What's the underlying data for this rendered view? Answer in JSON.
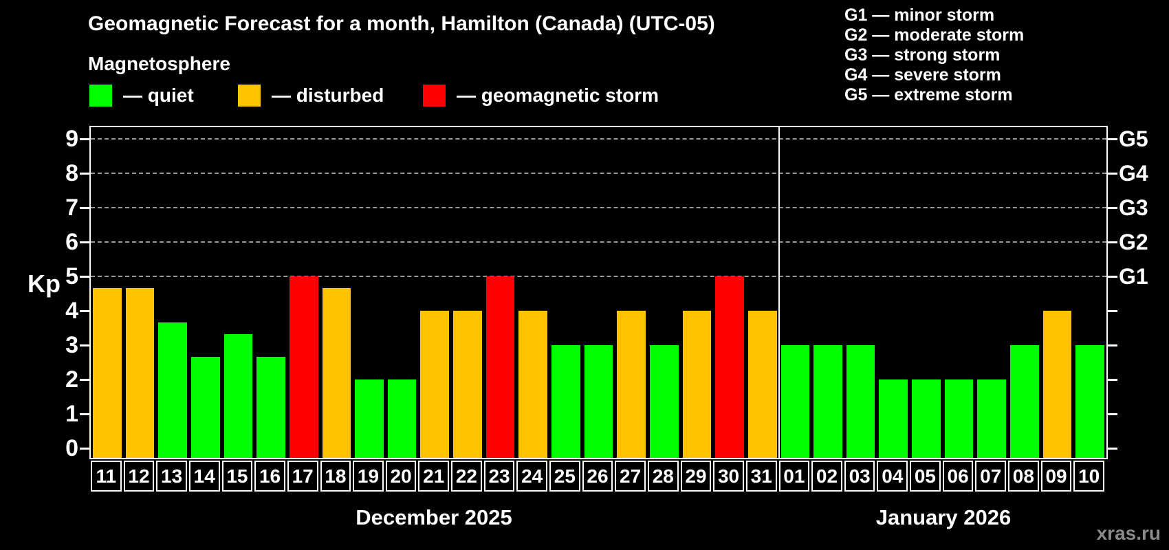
{
  "header": {
    "title": "Geomagnetic Forecast for a month, Hamilton (Canada) (UTC-05)",
    "subtitle": "Magnetosphere"
  },
  "legend": {
    "items": [
      {
        "status": "quiet",
        "label": "— quiet",
        "color": "#00FF00"
      },
      {
        "status": "disturbed",
        "label": "— disturbed",
        "color": "#FFC400"
      },
      {
        "status": "storm",
        "label": "— geomagnetic storm",
        "color": "#FF0000"
      }
    ]
  },
  "g_legend": {
    "items": [
      {
        "label": "G1 — minor storm"
      },
      {
        "label": "G2 — moderate storm"
      },
      {
        "label": "G3 — strong storm"
      },
      {
        "label": "G4 — severe storm"
      },
      {
        "label": "G5 — extreme storm"
      }
    ]
  },
  "y_axis": {
    "label": "Kp",
    "ticks": [
      0,
      1,
      2,
      3,
      4,
      5,
      6,
      7,
      8,
      9
    ]
  },
  "months": [
    {
      "label": "December 2025",
      "days_count": 21
    },
    {
      "label": "January 2026",
      "days_count": 10
    }
  ],
  "watermark": "xras.ru",
  "chart_data": {
    "type": "bar",
    "title": "Geomagnetic Forecast for a month, Hamilton (Canada) (UTC-05)",
    "ylabel": "Kp",
    "ylim": [
      0,
      9
    ],
    "grid": "dashed horizontal at Kp 5-9",
    "legend_position": "top",
    "status_colors": {
      "quiet": "#00FF00",
      "disturbed": "#FFC400",
      "storm": "#FF0000"
    },
    "gridlines_kp": [
      5,
      6,
      7,
      8,
      9
    ],
    "right_axis_labels": [
      {
        "kp": 5,
        "label": "G1"
      },
      {
        "kp": 6,
        "label": "G2"
      },
      {
        "kp": 7,
        "label": "G3"
      },
      {
        "kp": 8,
        "label": "G4"
      },
      {
        "kp": 9,
        "label": "G5"
      }
    ],
    "month_split_index": 21,
    "days": [
      {
        "month": "December 2025",
        "day": "11",
        "kp": 4.67,
        "status": "disturbed"
      },
      {
        "month": "December 2025",
        "day": "12",
        "kp": 4.67,
        "status": "disturbed"
      },
      {
        "month": "December 2025",
        "day": "13",
        "kp": 3.67,
        "status": "quiet"
      },
      {
        "month": "December 2025",
        "day": "14",
        "kp": 2.67,
        "status": "quiet"
      },
      {
        "month": "December 2025",
        "day": "15",
        "kp": 3.33,
        "status": "quiet"
      },
      {
        "month": "December 2025",
        "day": "16",
        "kp": 2.67,
        "status": "quiet"
      },
      {
        "month": "December 2025",
        "day": "17",
        "kp": 5,
        "status": "storm"
      },
      {
        "month": "December 2025",
        "day": "18",
        "kp": 4.67,
        "status": "disturbed"
      },
      {
        "month": "December 2025",
        "day": "19",
        "kp": 2,
        "status": "quiet"
      },
      {
        "month": "December 2025",
        "day": "20",
        "kp": 2,
        "status": "quiet"
      },
      {
        "month": "December 2025",
        "day": "21",
        "kp": 4,
        "status": "disturbed"
      },
      {
        "month": "December 2025",
        "day": "22",
        "kp": 4,
        "status": "disturbed"
      },
      {
        "month": "December 2025",
        "day": "23",
        "kp": 5,
        "status": "storm"
      },
      {
        "month": "December 2025",
        "day": "24",
        "kp": 4,
        "status": "disturbed"
      },
      {
        "month": "December 2025",
        "day": "25",
        "kp": 3,
        "status": "quiet"
      },
      {
        "month": "December 2025",
        "day": "26",
        "kp": 3,
        "status": "quiet"
      },
      {
        "month": "December 2025",
        "day": "27",
        "kp": 4,
        "status": "disturbed"
      },
      {
        "month": "December 2025",
        "day": "28",
        "kp": 3,
        "status": "quiet"
      },
      {
        "month": "December 2025",
        "day": "29",
        "kp": 4,
        "status": "disturbed"
      },
      {
        "month": "December 2025",
        "day": "30",
        "kp": 5,
        "status": "storm"
      },
      {
        "month": "December 2025",
        "day": "31",
        "kp": 4,
        "status": "disturbed"
      },
      {
        "month": "January 2026",
        "day": "01",
        "kp": 3,
        "status": "quiet"
      },
      {
        "month": "January 2026",
        "day": "02",
        "kp": 3,
        "status": "quiet"
      },
      {
        "month": "January 2026",
        "day": "03",
        "kp": 3,
        "status": "quiet"
      },
      {
        "month": "January 2026",
        "day": "04",
        "kp": 2,
        "status": "quiet"
      },
      {
        "month": "January 2026",
        "day": "05",
        "kp": 2,
        "status": "quiet"
      },
      {
        "month": "January 2026",
        "day": "06",
        "kp": 2,
        "status": "quiet"
      },
      {
        "month": "January 2026",
        "day": "07",
        "kp": 2,
        "status": "quiet"
      },
      {
        "month": "January 2026",
        "day": "08",
        "kp": 3,
        "status": "quiet"
      },
      {
        "month": "January 2026",
        "day": "09",
        "kp": 4,
        "status": "disturbed"
      },
      {
        "month": "January 2026",
        "day": "10",
        "kp": 3,
        "status": "quiet"
      }
    ]
  }
}
